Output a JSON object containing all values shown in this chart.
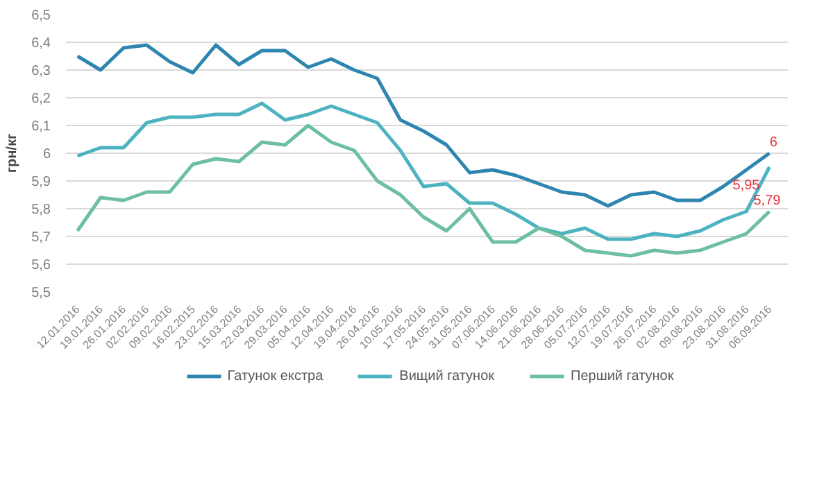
{
  "chart_data": {
    "type": "line",
    "ylabel": "грн/кг",
    "categories": [
      "12.01.2016",
      "19.01.2016",
      "26.01.2016",
      "02.02.2016",
      "09.02.2016",
      "16.02.2015",
      "23.02.2016",
      "15.03.2016",
      "22.03.2016",
      "29.03.2016",
      "05.04.2016",
      "12.04.2016",
      "19.04.2016",
      "26.04.2016",
      "10.05.2016",
      "17.05.2016",
      "24.05.2016",
      "31.05.2016",
      "07.06.2016",
      "14.06.2016",
      "21.06.2016",
      "28.06.2016",
      "05.07.2016",
      "12.07.2016",
      "19.07.2016",
      "26.07.2016",
      "02.08.2016",
      "09.08.2016",
      "23.08.2016",
      "31.08.2016",
      "06.09.2016"
    ],
    "series": [
      {
        "name": "Гатунок екстра",
        "color": "#2e86b0",
        "values": [
          6.35,
          6.3,
          6.38,
          6.39,
          6.33,
          6.29,
          6.39,
          6.32,
          6.37,
          6.37,
          6.31,
          6.34,
          6.3,
          6.27,
          6.12,
          6.08,
          6.03,
          5.93,
          5.94,
          5.92,
          5.89,
          5.86,
          5.85,
          5.81,
          5.85,
          5.86,
          5.83,
          5.83,
          5.88,
          5.94,
          6.0
        ],
        "value_labels": [
          null,
          null,
          null,
          null,
          null,
          null,
          null,
          null,
          null,
          null,
          null,
          null,
          null,
          null,
          null,
          null,
          null,
          null,
          null,
          null,
          null,
          null,
          null,
          null,
          null,
          null,
          null,
          null,
          null,
          null,
          "6"
        ]
      },
      {
        "name": "Вищий гатунок",
        "color": "#4db3c0",
        "values": [
          5.99,
          6.02,
          6.02,
          6.11,
          6.13,
          6.13,
          6.14,
          6.14,
          6.18,
          6.12,
          6.14,
          6.17,
          6.14,
          6.11,
          6.01,
          5.88,
          5.89,
          5.82,
          5.82,
          5.78,
          5.73,
          5.71,
          5.73,
          5.69,
          5.69,
          5.71,
          5.7,
          5.72,
          5.76,
          5.79,
          5.95
        ],
        "value_labels": [
          null,
          null,
          null,
          null,
          null,
          null,
          null,
          null,
          null,
          null,
          null,
          null,
          null,
          null,
          null,
          null,
          null,
          null,
          null,
          null,
          null,
          null,
          null,
          null,
          null,
          null,
          null,
          null,
          null,
          null,
          "5,95"
        ]
      },
      {
        "name": "Перший гатунок",
        "color": "#6dbf9f",
        "values": [
          5.72,
          5.84,
          5.83,
          5.86,
          5.86,
          5.96,
          5.98,
          5.97,
          6.04,
          6.03,
          6.1,
          6.04,
          6.01,
          5.9,
          5.85,
          5.77,
          5.72,
          5.8,
          5.68,
          5.68,
          5.73,
          5.7,
          5.65,
          5.64,
          5.63,
          5.65,
          5.64,
          5.65,
          5.68,
          5.71,
          5.79
        ],
        "value_labels": [
          null,
          null,
          null,
          null,
          null,
          null,
          null,
          null,
          null,
          null,
          null,
          null,
          null,
          null,
          null,
          null,
          null,
          null,
          null,
          null,
          null,
          null,
          null,
          null,
          null,
          null,
          null,
          null,
          null,
          null,
          "5,79"
        ]
      }
    ],
    "ylim": [
      5.5,
      6.5
    ],
    "yticks": [
      {
        "value": 5.5,
        "label": "5,5"
      },
      {
        "value": 5.6,
        "label": "5,6"
      },
      {
        "value": 5.7,
        "label": "5,7"
      },
      {
        "value": 5.8,
        "label": "5,8"
      },
      {
        "value": 5.9,
        "label": "5,9"
      },
      {
        "value": 6.0,
        "label": "6"
      },
      {
        "value": 6.1,
        "label": "6,1"
      },
      {
        "value": 6.2,
        "label": "6,2"
      },
      {
        "value": 6.3,
        "label": "6,3"
      },
      {
        "value": 6.4,
        "label": "6,4"
      },
      {
        "value": 6.5,
        "label": "6,5"
      }
    ],
    "grid": "y",
    "legend": "bottom",
    "line_style": "solid",
    "marker": "none"
  }
}
